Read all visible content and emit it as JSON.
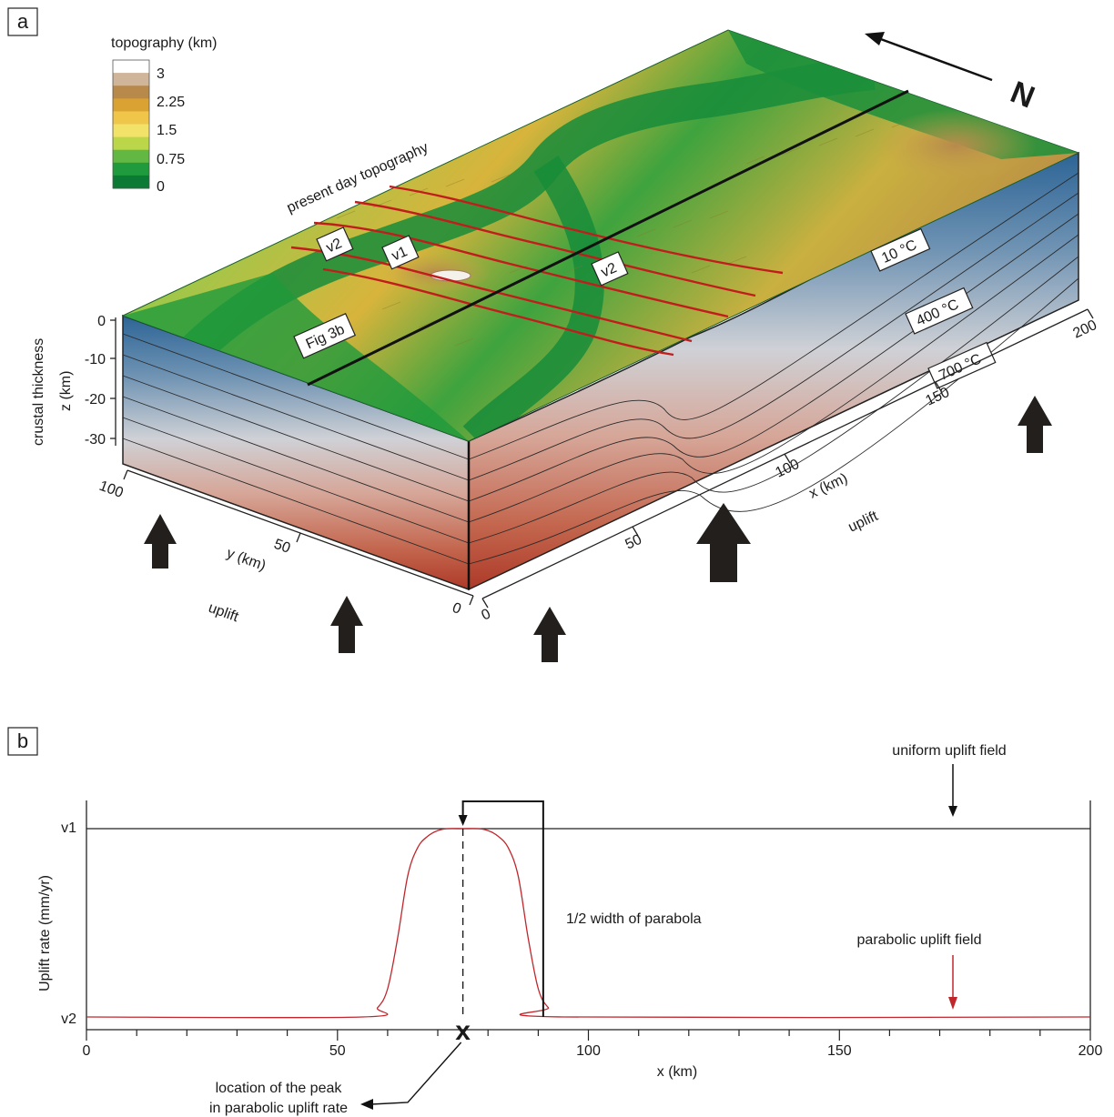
{
  "panel_a": {
    "tag": "a",
    "legend": {
      "title": "topography (km)",
      "labels": [
        "3",
        "2.25",
        "1.5",
        "0.75",
        "0"
      ],
      "colors": [
        "#ffffff",
        "#cfb59a",
        "#b78a4c",
        "#d9a233",
        "#efc64a",
        "#f3e26a",
        "#bcd64a",
        "#63b843",
        "#1f9a3c",
        "#0b7a34"
      ]
    },
    "surface_label": "present day topography",
    "north_label": "N",
    "profile_label": "Fig 3b",
    "zone_labels": {
      "v2_left": "v2",
      "v1": "v1",
      "v2_right": "v2"
    },
    "isotherms": [
      "10 °C",
      "400 °C",
      "700 °C"
    ],
    "z_axis": {
      "label_line1": "crustal thickness",
      "label_line2": "z (km)",
      "ticks": [
        "0",
        "-10",
        "-20",
        "-30"
      ]
    },
    "y_axis": {
      "label": "y (km)",
      "ticks": [
        "100",
        "50",
        "0"
      ]
    },
    "x_axis": {
      "label": "x (km)",
      "ticks": [
        "0",
        "50",
        "100",
        "150",
        "200"
      ]
    },
    "uplift_label_left": "uplift",
    "uplift_label_right": "uplift",
    "colors": {
      "crust_top": "#2f6898",
      "crust_mid": "#c9c9cf",
      "crust_bottom": "#b4402e",
      "fault": "#c21d1d",
      "lowland": "#178c3a"
    }
  },
  "panel_b": {
    "tag": "b",
    "chart_data": {
      "type": "line",
      "xlabel": "x (km)",
      "ylabel": "Uplift rate (mm/yr)",
      "xlim": [
        0,
        200
      ],
      "x_ticks": [
        "0",
        "50",
        "100",
        "150",
        "200"
      ],
      "y_ticks": [
        "v2",
        "v1"
      ],
      "series": [
        {
          "name": "uniform uplift field",
          "color": "#222222",
          "x": [
            0,
            200
          ],
          "y": [
            "v1",
            "v1"
          ]
        },
        {
          "name": "parabolic uplift field",
          "color": "#c0272d",
          "x": [
            0,
            55,
            58,
            60,
            62,
            64,
            66,
            68,
            70,
            72,
            75,
            78,
            80,
            82,
            84,
            86,
            88,
            90,
            92,
            95,
            200
          ],
          "y": [
            0.0,
            0.0,
            0.05,
            0.15,
            0.42,
            0.75,
            0.9,
            0.96,
            0.99,
            1.0,
            1.0,
            1.0,
            0.99,
            0.96,
            0.9,
            0.75,
            0.42,
            0.15,
            0.05,
            0.0,
            0.0
          ]
        }
      ],
      "peak_x": 75,
      "half_width_edge_x": 91,
      "peak_marker": "x",
      "annotations": {
        "uniform": "uniform uplift field",
        "parabolic": "parabolic uplift field",
        "half_width": "1/2 width of parabola",
        "peak_line1": "location of the peak",
        "peak_line2": "in parabolic uplift rate"
      }
    }
  }
}
